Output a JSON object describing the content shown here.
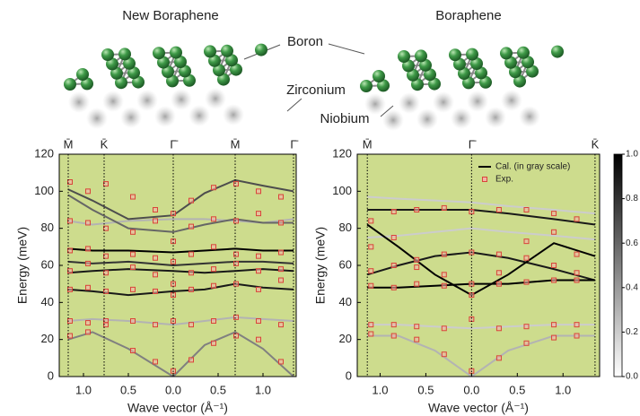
{
  "illustration": {
    "titles": [
      "New Boraphene",
      "Boraphene"
    ],
    "labels": [
      "Boron",
      "Zirconium",
      "Niobium"
    ]
  },
  "chart_data": [
    {
      "type": "dispersion",
      "xlabel": "Wave vector (Å⁻¹)",
      "ylabel": "Energy (meV)",
      "xlim": [
        -1.27,
        1.37
      ],
      "ylim": [
        0,
        120
      ],
      "yticks": [
        0,
        20,
        40,
        60,
        80,
        100,
        120
      ],
      "xticks": [
        {
          "value": -1.0,
          "label": "1.0"
        },
        {
          "value": -0.5,
          "label": "0.5"
        },
        {
          "value": 0,
          "label": "0.0"
        },
        {
          "value": 0.5,
          "label": "0.5"
        },
        {
          "value": 1.0,
          "label": "1.0"
        }
      ],
      "symmetry_points": [
        {
          "value": -1.17,
          "label": "M̄"
        },
        {
          "value": -0.77,
          "label": "K̄"
        },
        {
          "value": 0,
          "label": "Γ̄"
        },
        {
          "value": 0.69,
          "label": "M̄"
        },
        {
          "value": 1.34,
          "label": "Γ̄"
        }
      ],
      "background": "#cddc8d",
      "calc": {
        "curves": [
          {
            "intensity": 0.5,
            "x": [
              -1.17,
              -0.9,
              -0.5,
              0,
              0.35,
              0.69,
              1.0,
              1.34
            ],
            "values": [
              20,
              24,
              15,
              0,
              17,
              24,
              15,
              0
            ]
          },
          {
            "intensity": 0.3,
            "x": [
              -1.17,
              -0.9,
              -0.5,
              0,
              0.35,
              0.69,
              1.0,
              1.34
            ],
            "values": [
              30,
              31,
              30,
              28,
              30,
              32,
              31,
              30
            ]
          },
          {
            "intensity": 0.9,
            "x": [
              -1.17,
              -0.9,
              -0.5,
              0,
              0.35,
              0.69,
              1.0,
              1.34
            ],
            "values": [
              47,
              46,
              44,
              46,
              47,
              50,
              48,
              47
            ]
          },
          {
            "intensity": 0.9,
            "x": [
              -1.17,
              -0.9,
              -0.5,
              0,
              0.35,
              0.69,
              1.0,
              1.34
            ],
            "values": [
              56,
              57,
              58,
              57,
              56,
              57,
              58,
              57
            ]
          },
          {
            "intensity": 0.8,
            "x": [
              -1.17,
              -0.9,
              -0.5,
              0,
              0.35,
              0.69,
              1.0,
              1.34
            ],
            "values": [
              62,
              61,
              62,
              60,
              61,
              62,
              62,
              61
            ]
          },
          {
            "intensity": 1.0,
            "x": [
              -1.17,
              -0.9,
              -0.5,
              0,
              0.35,
              0.69,
              1.0,
              1.34
            ],
            "values": [
              69,
              68,
              68,
              67,
              68,
              69,
              68,
              68
            ]
          },
          {
            "intensity": 0.3,
            "x": [
              -1.17,
              -0.9,
              -0.5,
              0,
              0.35,
              0.69,
              1.0,
              1.34
            ],
            "values": [
              84,
              82,
              84,
              85,
              85,
              84,
              83,
              85
            ]
          },
          {
            "intensity": 0.6,
            "x": [
              -1.17,
              -0.9,
              -0.5,
              0,
              0.35,
              0.69,
              1.0,
              1.34
            ],
            "values": [
              98,
              90,
              80,
              78,
              82,
              85,
              83,
              83
            ]
          },
          {
            "intensity": 0.7,
            "x": [
              -1.17,
              -0.9,
              -0.5,
              0,
              0.35,
              0.69,
              1.0,
              1.34
            ],
            "values": [
              101,
              95,
              85,
              87,
              99,
              106,
              103,
              100
            ]
          }
        ]
      },
      "exp": {
        "color": "#d9443a",
        "x": [
          -1.15,
          -1.15,
          -1.15,
          -1.15,
          -1.15,
          -1.15,
          -1.15,
          -0.95,
          -0.95,
          -0.95,
          -0.95,
          -0.95,
          -0.95,
          -0.95,
          -0.75,
          -0.75,
          -0.75,
          -0.75,
          -0.75,
          -0.75,
          -0.75,
          -0.45,
          -0.45,
          -0.45,
          -0.45,
          -0.45,
          -0.45,
          -0.45,
          -0.2,
          -0.2,
          -0.2,
          -0.2,
          -0.2,
          -0.2,
          -0.2,
          0,
          0,
          0,
          0,
          0,
          0,
          0,
          0.2,
          0.2,
          0.2,
          0.2,
          0.2,
          0.2,
          0.2,
          0.45,
          0.45,
          0.45,
          0.45,
          0.45,
          0.45,
          0.45,
          0.7,
          0.7,
          0.7,
          0.7,
          0.7,
          0.7,
          0.7,
          0.95,
          0.95,
          0.95,
          0.95,
          0.95,
          0.95,
          0.95,
          1.2,
          1.2,
          1.2,
          1.2,
          1.2,
          1.2,
          1.2
        ],
        "values": [
          105,
          84,
          68,
          57,
          47,
          30,
          22,
          100,
          83,
          69,
          61,
          48,
          29,
          24,
          104,
          80,
          65,
          56,
          46,
          30,
          28,
          97,
          78,
          66,
          59,
          47,
          30,
          14,
          90,
          84,
          64,
          55,
          46,
          28,
          8,
          88,
          73,
          62,
          50,
          44,
          30,
          3,
          95,
          81,
          66,
          56,
          47,
          28,
          9,
          102,
          85,
          70,
          58,
          49,
          30,
          18,
          104,
          84,
          66,
          61,
          50,
          32,
          22,
          100,
          88,
          65,
          57,
          47,
          30,
          20,
          97,
          83,
          67,
          58,
          52,
          28,
          8
        ]
      }
    },
    {
      "type": "dispersion",
      "xlabel": "Wave vector (Å⁻¹)",
      "ylabel": "Energy (meV)",
      "xlim": [
        -1.25,
        1.4
      ],
      "ylim": [
        0,
        120
      ],
      "yticks": [
        0,
        20,
        40,
        60,
        80,
        100,
        120
      ],
      "xticks": [
        {
          "value": -1.0,
          "label": "1.0"
        },
        {
          "value": -0.5,
          "label": "0.5"
        },
        {
          "value": 0,
          "label": "0.0"
        },
        {
          "value": 0.5,
          "label": "0.5"
        },
        {
          "value": 1.0,
          "label": "1.0"
        }
      ],
      "symmetry_points": [
        {
          "value": -1.14,
          "label": "M̄"
        },
        {
          "value": 0,
          "label": "Γ̄"
        },
        {
          "value": 1.35,
          "label": "K̄"
        }
      ],
      "background": "#cddc8d",
      "calc": {
        "name": "Cal. (in gray scale)",
        "curves": [
          {
            "intensity": 0.3,
            "x": [
              -1.14,
              -0.8,
              -0.4,
              0,
              0.4,
              0.9,
              1.35
            ],
            "values": [
              22,
              22,
              14,
              0,
              14,
              22,
              22
            ]
          },
          {
            "intensity": 0.2,
            "x": [
              -1.14,
              -0.8,
              -0.4,
              0,
              0.4,
              0.9,
              1.35
            ],
            "values": [
              28,
              28,
              27,
              26,
              27,
              28,
              28
            ]
          },
          {
            "intensity": 0.2,
            "x": [
              -1.14,
              -0.8,
              -0.4,
              0,
              0.4,
              0.9,
              1.35
            ],
            "values": [
              75,
              76,
              78,
              80,
              78,
              76,
              74
            ]
          },
          {
            "intensity": 0.2,
            "x": [
              -1.14,
              -0.8,
              -0.4,
              0,
              0.4,
              0.9,
              1.35
            ],
            "values": [
              97,
              96,
              95,
              94,
              92,
              90,
              88
            ]
          },
          {
            "intensity": 0.9,
            "x": [
              -1.14,
              -0.8,
              -0.4,
              0,
              0.4,
              0.9,
              1.35
            ],
            "values": [
              55,
              60,
              65,
              67,
              64,
              58,
              52
            ]
          },
          {
            "intensity": 1.0,
            "x": [
              -1.14,
              -0.8,
              -0.4,
              0,
              0.4,
              0.9,
              1.35
            ],
            "values": [
              48,
              48,
              49,
              50,
              50,
              52,
              52
            ]
          },
          {
            "intensity": 1.0,
            "x": [
              -1.14,
              -0.8,
              -0.4,
              0,
              0.4,
              0.9,
              1.35
            ],
            "values": [
              82,
              70,
              55,
              44,
              55,
              72,
              65
            ]
          },
          {
            "intensity": 0.9,
            "x": [
              -1.14,
              -0.8,
              -0.4,
              0,
              0.4,
              0.9,
              1.35
            ],
            "values": [
              90,
              90,
              90,
              90,
              88,
              85,
              82
            ]
          }
        ]
      },
      "exp": {
        "name": "Exp.",
        "color": "#d9443a",
        "x": [
          -1.1,
          -1.1,
          -1.1,
          -1.1,
          -1.1,
          -1.1,
          -0.85,
          -0.85,
          -0.85,
          -0.85,
          -0.85,
          -0.85,
          -0.6,
          -0.6,
          -0.6,
          -0.6,
          -0.6,
          -0.6,
          -0.3,
          -0.3,
          -0.3,
          -0.3,
          -0.3,
          -0.3,
          0,
          0,
          0,
          0,
          0,
          0,
          0.3,
          0.3,
          0.3,
          0.3,
          0.3,
          0.3,
          0.6,
          0.6,
          0.6,
          0.6,
          0.6,
          0.6,
          0.9,
          0.9,
          0.9,
          0.9,
          0.9,
          0.9,
          1.15,
          1.15,
          1.15,
          1.15,
          1.15,
          1.15
        ],
        "values": [
          84,
          57,
          49,
          28,
          23,
          70,
          89,
          60,
          48,
          28,
          22,
          75,
          90,
          63,
          50,
          27,
          20,
          59,
          91,
          66,
          49,
          26,
          12,
          55,
          89,
          67,
          50,
          31,
          3,
          44,
          90,
          66,
          50,
          26,
          10,
          56,
          90,
          64,
          51,
          27,
          18,
          73,
          88,
          60,
          52,
          28,
          21,
          78,
          85,
          56,
          52,
          28,
          22,
          66
        ]
      },
      "colorbar": {
        "lim": [
          0,
          1
        ],
        "ticks": [
          {
            "value": 0,
            "label": "0.0"
          },
          0.2,
          0.4,
          0.6,
          0.8,
          {
            "value": 1,
            "label": "1.0"
          }
        ]
      }
    }
  ]
}
